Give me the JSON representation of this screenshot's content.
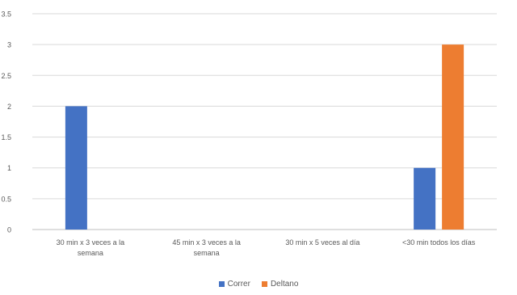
{
  "chart_data": {
    "type": "bar",
    "title": "",
    "xlabel": "",
    "ylabel": "",
    "ylim": [
      0,
      3.5
    ],
    "yticks": [
      "0",
      "0.5",
      "1",
      "1.5",
      "2",
      "2.5",
      "3",
      "3.5"
    ],
    "grid": true,
    "legend_position": "bottom",
    "categories": [
      [
        "30 min x 3 veces a la",
        "semana"
      ],
      [
        "45 min x 3 veces a la",
        "semana"
      ],
      [
        "30 min x 5 veces al día"
      ],
      [
        "<30 min todos los días"
      ]
    ],
    "series": [
      {
        "name": "Correr",
        "color": "#4472C4",
        "values": [
          2,
          0,
          0,
          1
        ]
      },
      {
        "name": "Deltano",
        "color": "#ED7D31",
        "values": [
          0,
          0,
          0,
          3
        ]
      }
    ]
  }
}
